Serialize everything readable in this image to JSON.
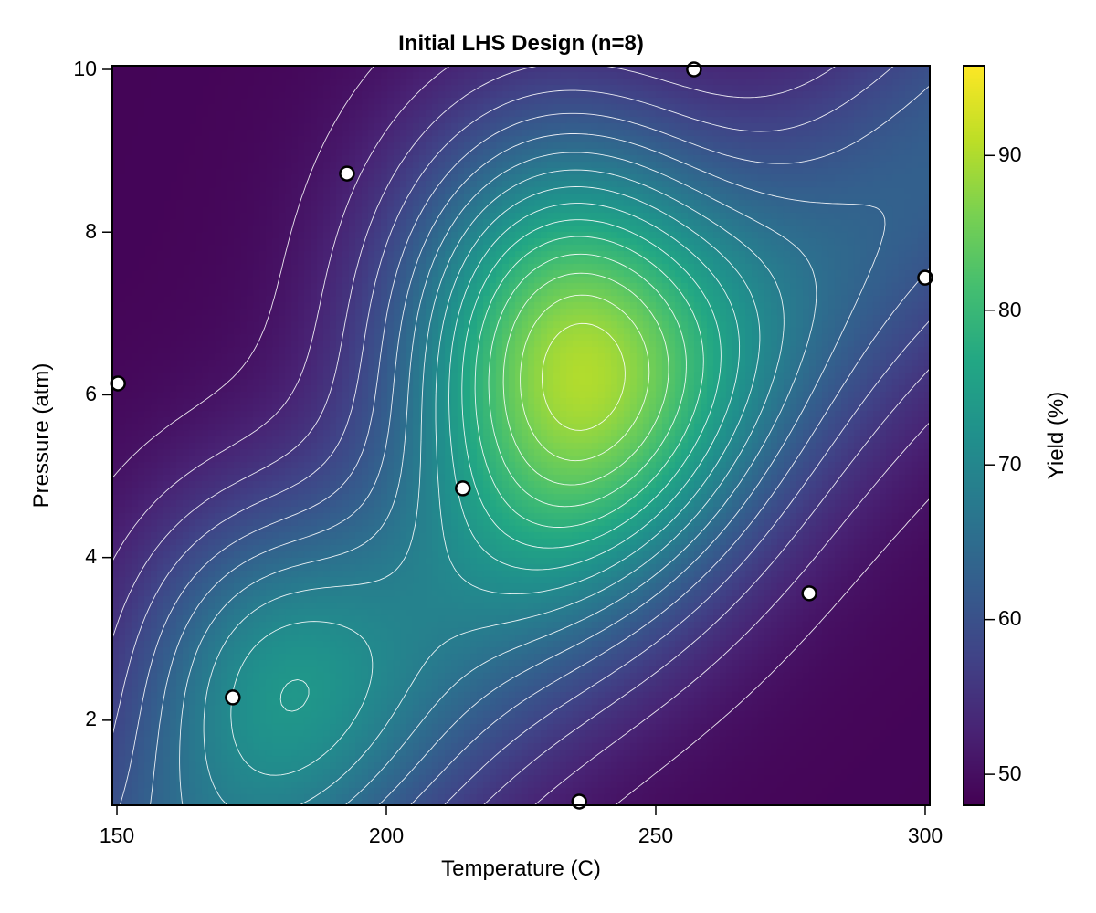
{
  "chart_data": {
    "type": "heatmap",
    "title": "Initial LHS Design (n=8)",
    "xlabel": "Temperature (C)",
    "ylabel": "Pressure (atm)",
    "colorbar_label": "Yield (%)",
    "xlim": [
      149.15,
      300.85
    ],
    "ylim": [
      0.955,
      10.045
    ],
    "xticks": [
      150,
      200,
      250,
      300
    ],
    "yticks": [
      2,
      4,
      6,
      8,
      10
    ],
    "colorbar_ticks": [
      50,
      60,
      70,
      80,
      90
    ],
    "colorbar_range": [
      48.0,
      95.8
    ],
    "colormap": "viridis",
    "grid": false,
    "surface_features": {
      "primary_peak": {
        "x": 232.5,
        "y": 6.7,
        "value": 95.8
      },
      "secondary_peak": {
        "x": 176.5,
        "y": 2.85,
        "value": 77
      },
      "min_regions": [
        "top-left (low T, high P)",
        "bottom-right (high T, low P)"
      ],
      "contour_color": "#ffffff",
      "contour_levels": 18
    },
    "series": [
      {
        "name": "LHS sample points",
        "marker": "circle",
        "marker_fill": "#ffffff",
        "marker_edge": "#000000",
        "points": [
          {
            "x": 150.2,
            "y": 6.14
          },
          {
            "x": 171.5,
            "y": 2.28
          },
          {
            "x": 192.7,
            "y": 8.72
          },
          {
            "x": 214.2,
            "y": 4.85
          },
          {
            "x": 235.8,
            "y": 1.0
          },
          {
            "x": 257.1,
            "y": 10.0
          },
          {
            "x": 278.5,
            "y": 3.56
          },
          {
            "x": 300.0,
            "y": 7.44
          }
        ]
      }
    ]
  },
  "labels": {
    "title": "Initial LHS Design (n=8)",
    "xlabel": "Temperature (C)",
    "ylabel": "Pressure (atm)",
    "colorbar_label": "Yield (%)",
    "xticks": [
      "150",
      "200",
      "250",
      "300"
    ],
    "yticks": [
      "10",
      "8",
      "6",
      "4",
      "2"
    ],
    "cticks": [
      "90",
      "80",
      "70",
      "60",
      "50"
    ]
  }
}
